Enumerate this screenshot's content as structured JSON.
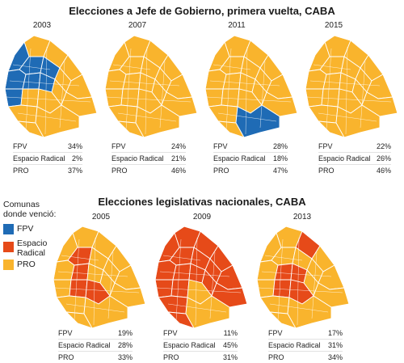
{
  "title_top": "Elecciones a Jefe de Gobierno, primera vuelta, CABA",
  "title_bottom": "Elecciones legislativas nacionales, CABA",
  "legend": {
    "title_line1": "Comunas",
    "title_line2": "donde venció:",
    "items": [
      {
        "line1": "FPV",
        "line2": "",
        "color": "#1f6bb5"
      },
      {
        "line1": "Espacio",
        "line2": "Radical",
        "color": "#e64a19"
      },
      {
        "line1": "PRO",
        "line2": "",
        "color": "#f9b42d"
      }
    ]
  },
  "colors": {
    "FPV": "#1f6bb5",
    "Espacio Radical": "#e64a19",
    "PRO": "#f9b42d",
    "border": "#ffffff"
  },
  "elections": [
    {
      "year": "2003",
      "type": "jefe_de_gobierno",
      "dominant": "PRO",
      "minority_winner": "FPV",
      "results": [
        {
          "party": "FPV",
          "value": "34%"
        },
        {
          "party": "Espacio Radical",
          "value": "2%"
        },
        {
          "party": "PRO",
          "value": "37%"
        }
      ]
    },
    {
      "year": "2007",
      "type": "jefe_de_gobierno",
      "dominant": "PRO",
      "minority_winner": "",
      "results": [
        {
          "party": "FPV",
          "value": "24%"
        },
        {
          "party": "Espacio Radical",
          "value": "21%"
        },
        {
          "party": "PRO",
          "value": "46%"
        }
      ]
    },
    {
      "year": "2011",
      "type": "jefe_de_gobierno",
      "dominant": "PRO",
      "minority_winner": "FPV",
      "results": [
        {
          "party": "FPV",
          "value": "28%"
        },
        {
          "party": "Espacio Radical",
          "value": "18%"
        },
        {
          "party": "PRO",
          "value": "47%"
        }
      ]
    },
    {
      "year": "2015",
      "type": "jefe_de_gobierno",
      "dominant": "PRO",
      "minority_winner": "",
      "results": [
        {
          "party": "FPV",
          "value": "22%"
        },
        {
          "party": "Espacio Radical",
          "value": "26%"
        },
        {
          "party": "PRO",
          "value": "46%"
        }
      ]
    },
    {
      "year": "2005",
      "type": "legislativas",
      "dominant": "PRO",
      "minority_winner": "Espacio Radical",
      "results": [
        {
          "party": "FPV",
          "value": "19%"
        },
        {
          "party": "Espacio Radical",
          "value": "28%"
        },
        {
          "party": "PRO",
          "value": "33%"
        }
      ]
    },
    {
      "year": "2009",
      "type": "legislativas",
      "dominant": "Espacio Radical",
      "minority_winner": "PRO",
      "results": [
        {
          "party": "FPV",
          "value": "11%"
        },
        {
          "party": "Espacio Radical",
          "value": "45%"
        },
        {
          "party": "PRO",
          "value": "31%"
        }
      ]
    },
    {
      "year": "2013",
      "type": "legislativas",
      "dominant": "PRO",
      "minority_winner": "Espacio Radical",
      "results": [
        {
          "party": "FPV",
          "value": "17%"
        },
        {
          "party": "Espacio Radical",
          "value": "31%"
        },
        {
          "party": "PRO",
          "value": "34%"
        }
      ]
    }
  ]
}
